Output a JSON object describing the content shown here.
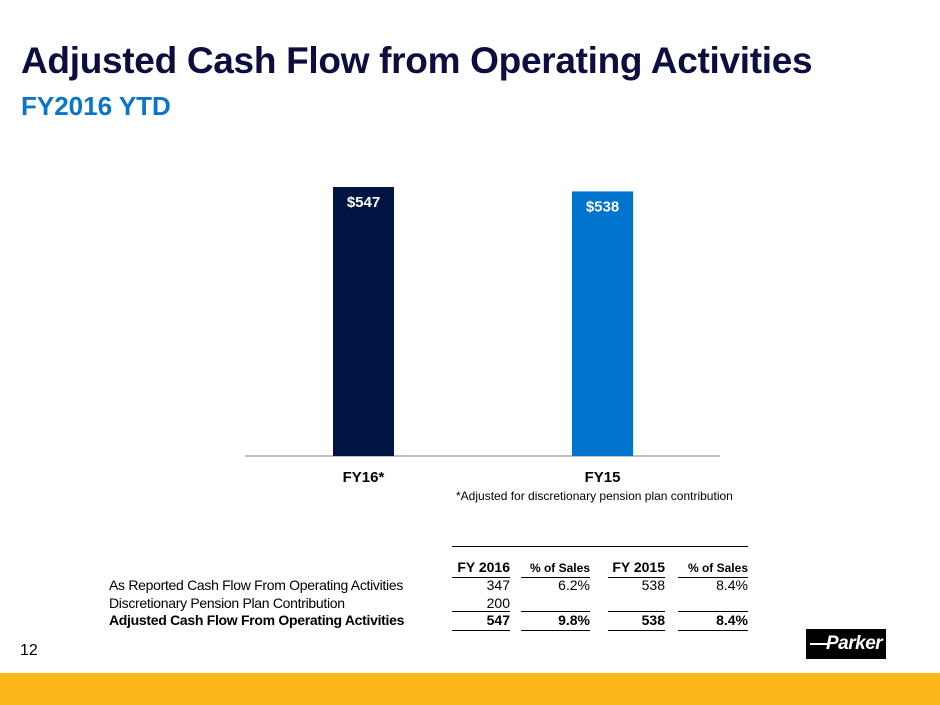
{
  "header": {
    "title": "Adjusted Cash Flow from Operating Activities",
    "subtitle": "FY2016 YTD"
  },
  "chart_data": {
    "type": "bar",
    "title": "Adjusted Cash Flow from Operating Activities",
    "subtitle": "FY2016 YTD",
    "categories": [
      "FY16*",
      "FY15"
    ],
    "values": [
      547,
      538
    ],
    "data_labels": [
      "$547",
      "$538"
    ],
    "colors": [
      "#001541",
      "#0073cc"
    ],
    "xlabel": "",
    "ylabel": "",
    "ylim": [
      0,
      547
    ],
    "grid": false,
    "legend": "none",
    "annotations": [
      "*Adjusted for discretionary pension plan contribution"
    ]
  },
  "footnote": "*Adjusted for discretionary pension plan contribution",
  "table": {
    "headers": [
      "FY 2016",
      "% of Sales",
      "FY 2015",
      "% of Sales"
    ],
    "rows": [
      {
        "label": "As Reported Cash Flow From Operating Activities",
        "values": [
          "347",
          "6.2%",
          "538",
          "8.4%"
        ],
        "bold": false
      },
      {
        "label": "Discretionary Pension Plan Contribution",
        "values": [
          "200",
          "",
          "",
          ""
        ],
        "bold": false
      },
      {
        "label": "Adjusted Cash Flow From Operating Activities",
        "values": [
          "547",
          "9.8%",
          "538",
          "8.4%"
        ],
        "bold": true
      }
    ]
  },
  "footer": {
    "page_number": "12",
    "logo_text": "Parker",
    "bar_color": "#fdb71a"
  }
}
